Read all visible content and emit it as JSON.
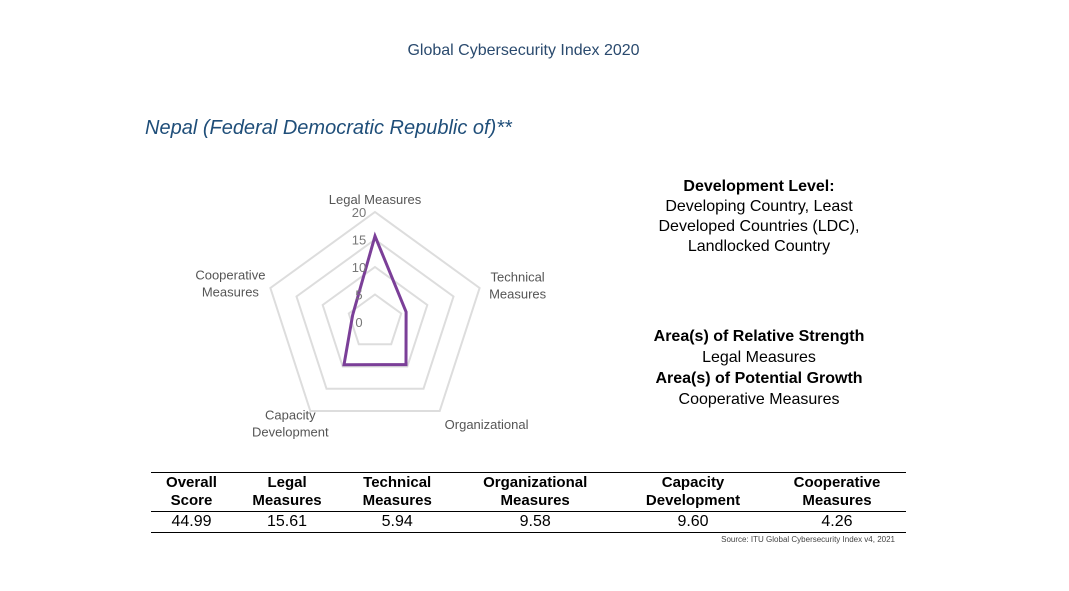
{
  "header": {
    "title": "Global Cybersecurity Index 2020"
  },
  "country": {
    "name": "Nepal (Federal Democratic Republic of)**"
  },
  "development": {
    "heading": "Development Level:",
    "lines": [
      "Developing Country, Least",
      "Developed Countries (LDC),",
      "Landlocked Country"
    ]
  },
  "areas": {
    "strength_heading": "Area(s) of Relative Strength",
    "strength_value": "Legal Measures",
    "growth_heading": "Area(s) of Potential Growth",
    "growth_value": "Cooperative Measures"
  },
  "chart_data": {
    "type": "radar",
    "axes": [
      "Legal Measures",
      "Technical Measures",
      "Organizational",
      "Capacity Development",
      "Cooperative Measures"
    ],
    "axis_labels": [
      [
        "Legal Measures"
      ],
      [
        "Technical",
        "Measures"
      ],
      [
        "Organizational"
      ],
      [
        "Capacity",
        "Development"
      ],
      [
        "Cooperative",
        "Measures"
      ]
    ],
    "values": [
      15.61,
      5.94,
      9.58,
      9.6,
      4.26
    ],
    "rlim": [
      0,
      20
    ],
    "ticks": [
      0,
      5,
      10,
      15,
      20
    ],
    "series_color": "#7b3f98",
    "grid_color": "#dddddd"
  },
  "table": {
    "headers": [
      [
        "Overall",
        "Score"
      ],
      [
        "Legal",
        "Measures"
      ],
      [
        "Technical",
        "Measures"
      ],
      [
        "Organizational",
        "Measures"
      ],
      [
        "Capacity",
        "Development"
      ],
      [
        "Cooperative",
        "Measures"
      ]
    ],
    "values": [
      "44.99",
      "15.61",
      "5.94",
      "9.58",
      "9.60",
      "4.26"
    ]
  },
  "source": "Source: ITU Global Cybersecurity Index v4, 2021"
}
